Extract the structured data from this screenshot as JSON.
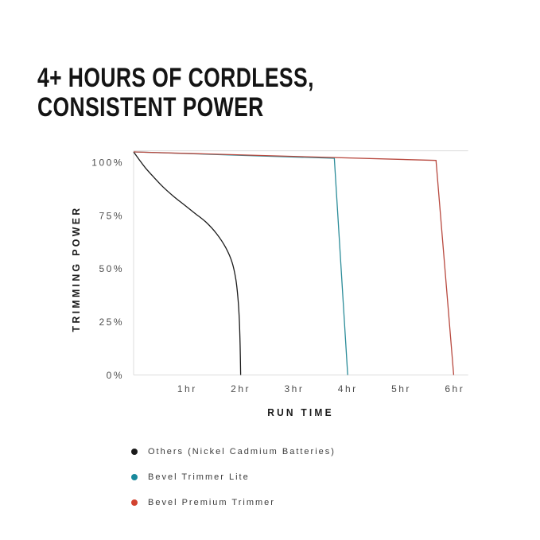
{
  "page": {
    "background": "#ffffff"
  },
  "header": {
    "title_lines": [
      "4+ HOURS OF CORDLESS,",
      "CONSISTENT POWER"
    ]
  },
  "legend": {
    "position": "bottom-left",
    "items": [
      {
        "id": "others",
        "label": "Others (Nickel Cadmium Batteries)",
        "color": "#1a1a1a"
      },
      {
        "id": "bevel-trimmer-lite",
        "label": "Bevel Trimmer Lite",
        "color": "#18899c"
      },
      {
        "id": "bevel-premium-trimmer",
        "label": "Bevel Premium Trimmer",
        "color": "#d2422f"
      }
    ]
  },
  "chart_data": {
    "type": "line",
    "title": "",
    "xlabel": "RUN TIME",
    "ylabel": "TRIMMING POWER",
    "x_unit": "hours",
    "y_unit": "percent",
    "xlim": [
      0,
      6.25
    ],
    "ylim": [
      0,
      105.5
    ],
    "grid": {
      "top_line": true,
      "left_line": true,
      "bottom_line": true,
      "inner_gridlines": false
    },
    "grid_color": "#dcdcdc",
    "tick_color": "#4d4d4d",
    "x_ticks": [
      {
        "value": 1,
        "label": "1hr"
      },
      {
        "value": 2,
        "label": "2hr"
      },
      {
        "value": 3,
        "label": "3hr"
      },
      {
        "value": 4,
        "label": "4hr"
      },
      {
        "value": 5,
        "label": "5hr"
      },
      {
        "value": 6,
        "label": "6hr"
      }
    ],
    "y_ticks": [
      {
        "value": 0,
        "label": "0%"
      },
      {
        "value": 25,
        "label": "25%"
      },
      {
        "value": 50,
        "label": "50%"
      },
      {
        "value": 75,
        "label": "75%"
      },
      {
        "value": 100,
        "label": "100%"
      }
    ],
    "series": [
      {
        "id": "others",
        "name": "Others (Nickel Cadmium Batteries)",
        "color": "#1a1a1a",
        "smooth": true,
        "points": [
          [
            0,
            105
          ],
          [
            0.1,
            101.5
          ],
          [
            0.22,
            97.5
          ],
          [
            0.38,
            93
          ],
          [
            0.55,
            88.5
          ],
          [
            0.75,
            84
          ],
          [
            0.95,
            80
          ],
          [
            1.15,
            76
          ],
          [
            1.35,
            72
          ],
          [
            1.55,
            66.5
          ],
          [
            1.72,
            60
          ],
          [
            1.84,
            53
          ],
          [
            1.91,
            45
          ],
          [
            1.95,
            36
          ],
          [
            1.975,
            26
          ],
          [
            1.99,
            14
          ],
          [
            2,
            0
          ]
        ]
      },
      {
        "id": "bevel-trimmer-lite",
        "name": "Bevel Trimmer Lite",
        "color": "#2b8c99",
        "smooth": false,
        "points": [
          [
            0,
            105
          ],
          [
            3.75,
            102
          ],
          [
            4,
            0
          ]
        ]
      },
      {
        "id": "bevel-premium-trimmer",
        "name": "Bevel Premium Trimmer",
        "color": "#b8493f",
        "smooth": false,
        "points": [
          [
            0,
            105
          ],
          [
            5.65,
            101
          ],
          [
            5.98,
            0
          ]
        ]
      }
    ]
  }
}
